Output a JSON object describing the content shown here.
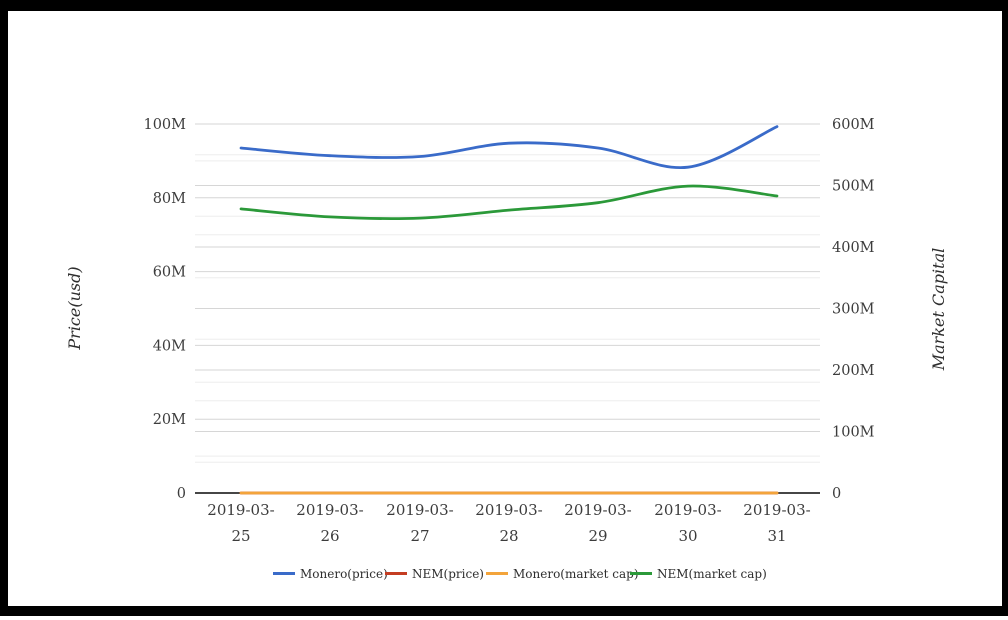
{
  "chart_data": {
    "type": "line",
    "x_categories": [
      "2019-03-25",
      "2019-03-26",
      "2019-03-27",
      "2019-03-28",
      "2019-03-29",
      "2019-03-30",
      "2019-03-31"
    ],
    "series": [
      {
        "name": "Monero(price)",
        "axis": "left",
        "color": "#3a6bc9",
        "values_millions": [
          93.5,
          91.4,
          91.2,
          94.8,
          93.5,
          88.3,
          99.3
        ]
      },
      {
        "name": "NEM(price)",
        "axis": "left",
        "color": "#c43d22",
        "values_millions": [
          0,
          0,
          0,
          0,
          0,
          0,
          0
        ]
      },
      {
        "name": "Monero(market cap)",
        "axis": "left",
        "color": "#f3a43b",
        "values_millions": [
          0,
          0,
          0,
          0,
          0,
          0,
          0
        ]
      },
      {
        "name": "NEM(market cap)",
        "axis": "right",
        "color": "#2b9939",
        "values_millions": [
          462,
          449,
          447,
          460,
          472,
          499,
          483
        ]
      }
    ],
    "left_axis": {
      "title": "Price(usd)",
      "tick_labels": [
        "0",
        "20M",
        "40M",
        "60M",
        "80M",
        "100M"
      ],
      "min_m": 0,
      "max_m": 100,
      "major_step_m": 20,
      "minor_step_m": 10
    },
    "right_axis": {
      "title": "Market Capital",
      "tick_labels": [
        "0",
        "100M",
        "200M",
        "300M",
        "400M",
        "500M",
        "600M"
      ],
      "min_m": 0,
      "max_m": 600,
      "major_step_m": 100,
      "minor_step_m": 50
    },
    "legend_labels": [
      "Monero(price)",
      "NEM(price)",
      "Monero(market cap)",
      "NEM(market cap)"
    ],
    "grid": "on",
    "legend_position": "bottom-center",
    "tick_text_color": "#3c3c3c",
    "axis_title_color": "#2e2e2e",
    "baseline_color": "#2b2b2b"
  }
}
